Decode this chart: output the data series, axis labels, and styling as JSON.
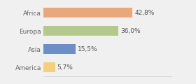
{
  "categories": [
    "Africa",
    "Europa",
    "Asia",
    "America"
  ],
  "values": [
    42.8,
    36.0,
    15.5,
    5.7
  ],
  "labels": [
    "42,8%",
    "36,0%",
    "15,5%",
    "5,7%"
  ],
  "bar_colors": [
    "#e8a87c",
    "#b5c98a",
    "#6e8fc4",
    "#f5d07a"
  ],
  "background_color": "#f0f0f0",
  "xlim": [
    0,
    62
  ],
  "label_fontsize": 6.5,
  "tick_fontsize": 6.5,
  "bar_height": 0.55
}
